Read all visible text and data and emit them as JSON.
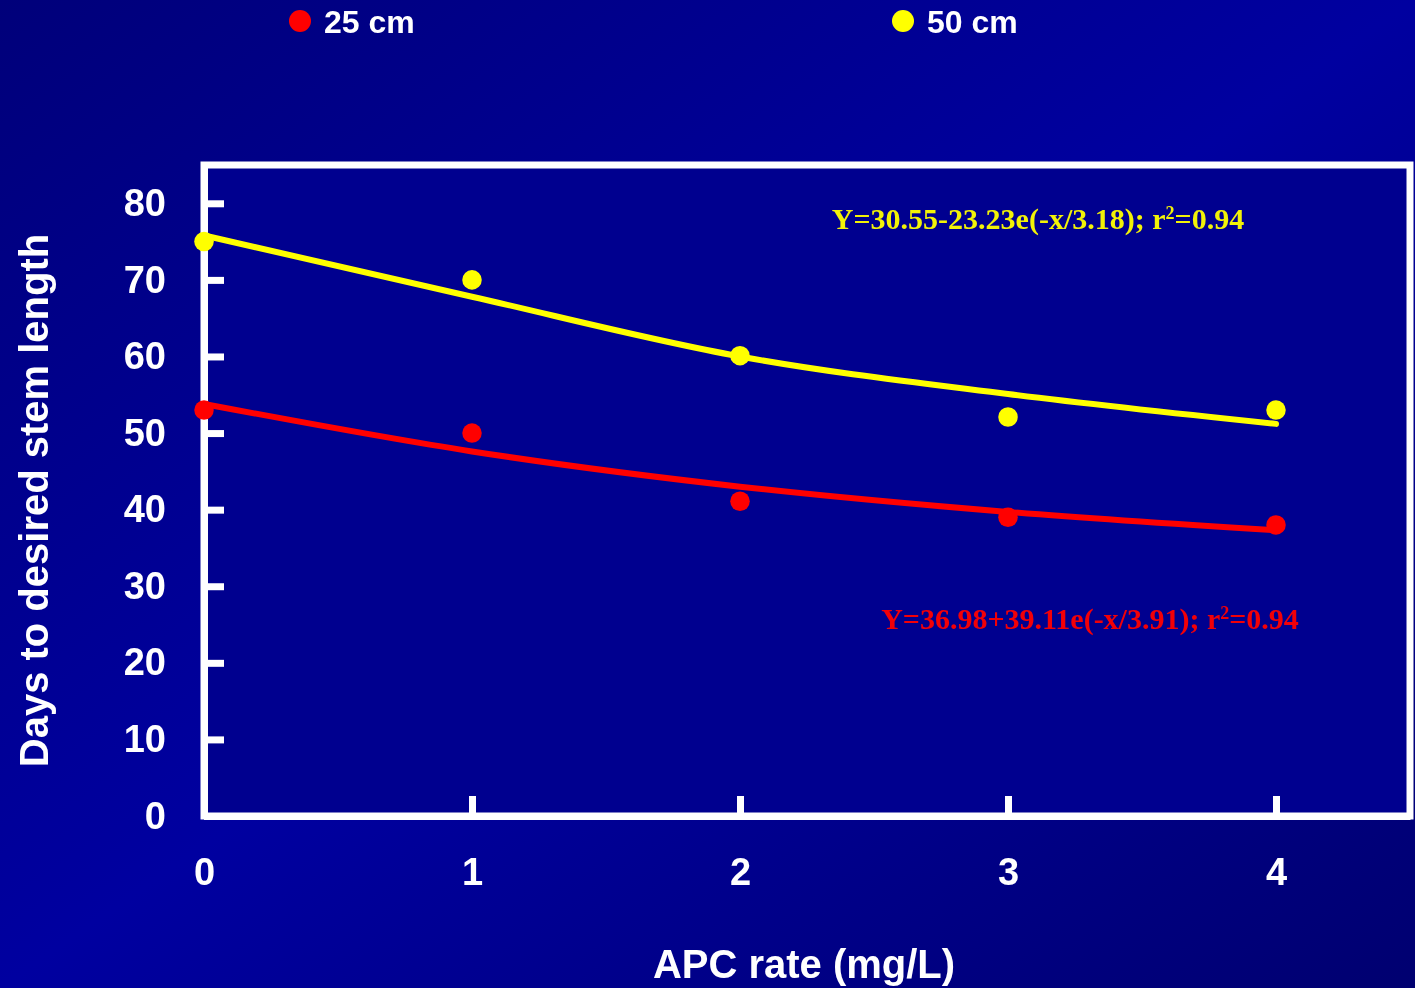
{
  "chart_data": {
    "type": "scatter",
    "xlabel": "APC rate (mg/L)",
    "ylabel": "Days to desired stem length",
    "x": [
      0,
      1,
      2,
      3,
      4
    ],
    "series": [
      {
        "name": "25 cm",
        "color": "#ff0000",
        "values": [
          53,
          50,
          41.1,
          39,
          38
        ]
      },
      {
        "name": "50 cm",
        "color": "#ffff00",
        "values": [
          75,
          70,
          60.1,
          52.1,
          53
        ]
      },
      {
        "type": "line",
        "marker": "none",
        "color": "#ffff00",
        "x": [
          0,
          1,
          2,
          3,
          4
        ],
        "values": [
          75.8,
          67.8,
          60,
          55.1,
          51.2
        ]
      },
      {
        "type": "line",
        "marker": "none",
        "color": "#ff0000",
        "x": [
          0,
          1,
          2,
          3,
          4
        ],
        "values": [
          53.8,
          47.6,
          43,
          39.7,
          37.3
        ]
      }
    ],
    "annotations": [
      "Y=30.55-23.23e(-x/3.18); r$^{2}$=0.94",
      "Y=36.98+39.11e(-x/3.91); r$^{2}$=0.94"
    ],
    "xlim": [
      0,
      4.5
    ],
    "xticks": [
      0,
      1,
      2,
      3,
      4
    ],
    "ylim": [
      0,
      85
    ],
    "yticks": [
      0,
      10,
      20,
      30,
      40,
      50,
      60,
      70,
      80
    ],
    "marker": "circle",
    "legend": "top",
    "grid": false
  }
}
